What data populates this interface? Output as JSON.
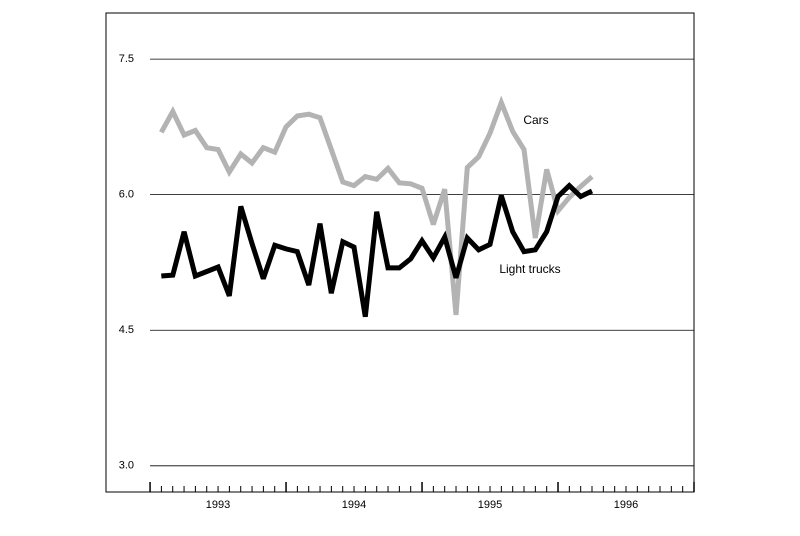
{
  "chart_data": {
    "type": "line",
    "x": [
      1993.083,
      1993.167,
      1993.25,
      1993.333,
      1993.417,
      1993.5,
      1993.583,
      1993.667,
      1993.75,
      1993.833,
      1993.917,
      1994,
      1994.083,
      1994.167,
      1994.25,
      1994.333,
      1994.417,
      1994.5,
      1994.583,
      1994.667,
      1994.75,
      1994.833,
      1994.917,
      1995,
      1995.083,
      1995.167,
      1995.25,
      1995.333,
      1995.417,
      1995.5,
      1995.583,
      1995.667,
      1995.75,
      1995.833,
      1995.917,
      1996,
      1996.083,
      1996.167,
      1996.25
    ],
    "series": [
      {
        "name": "Cars",
        "color": "#b3b3b3",
        "values": [
          6.69,
          6.92,
          6.66,
          6.71,
          6.52,
          6.5,
          6.25,
          6.45,
          6.35,
          6.52,
          6.47,
          6.75,
          6.87,
          6.89,
          6.85,
          6.5,
          6.14,
          6.1,
          6.2,
          6.17,
          6.29,
          6.13,
          6.12,
          6.07,
          5.67,
          6.06,
          4.67,
          6.3,
          6.42,
          6.68,
          7.02,
          6.7,
          6.5,
          5.52,
          6.28,
          5.82,
          5.97,
          6.09,
          6.2
        ]
      },
      {
        "name": "Light trucks",
        "color": "#000000",
        "values": [
          5.1,
          5.11,
          5.59,
          5.1,
          5.15,
          5.2,
          4.88,
          5.87,
          5.46,
          5.07,
          5.44,
          5.4,
          5.37,
          5.0,
          5.68,
          4.91,
          5.48,
          5.42,
          4.65,
          5.81,
          5.19,
          5.19,
          5.29,
          5.49,
          5.3,
          5.53,
          5.08,
          5.52,
          5.39,
          5.45,
          5.99,
          5.59,
          5.37,
          5.39,
          5.59,
          5.98,
          6.1,
          5.98,
          6.04
        ]
      }
    ],
    "xlim": [
      1992.676,
      1997
    ],
    "xticks": [
      {
        "value": 1993.5,
        "label": "1993"
      },
      {
        "value": 1994.5,
        "label": "1994"
      },
      {
        "value": 1995.5,
        "label": "1995"
      },
      {
        "value": 1996.5,
        "label": "1996"
      }
    ],
    "xmajorticks": [
      1993,
      1994,
      1995,
      1996,
      1997
    ],
    "ylim": [
      2.71,
      8.01
    ],
    "yticks": [
      {
        "value": 3,
        "label": "3.0"
      },
      4.5,
      {
        "value": 6,
        "label": "6.0"
      },
      7.5
    ],
    "grid": true
  }
}
